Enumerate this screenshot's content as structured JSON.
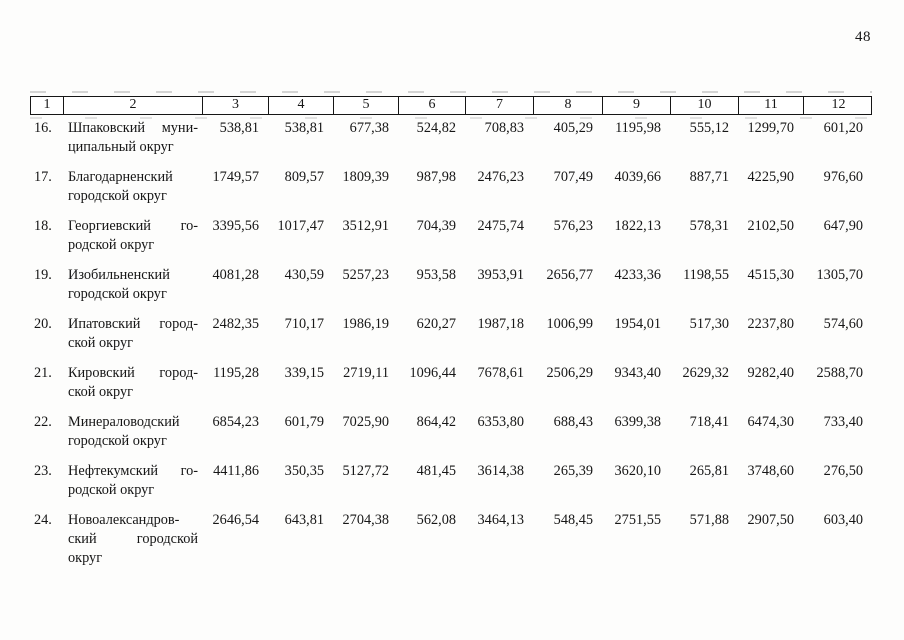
{
  "page": {
    "number": "48"
  },
  "table": {
    "header_cells": [
      "1",
      "2",
      "3",
      "4",
      "5",
      "6",
      "7",
      "8",
      "9",
      "10",
      "11",
      "12"
    ],
    "rows": [
      {
        "num": "16.",
        "name_lines": [
          "Шпаковский муни-",
          "ципальный округ"
        ],
        "values": [
          "538,81",
          "538,81",
          "677,38",
          "524,82",
          "708,83",
          "405,29",
          "1195,98",
          "555,12",
          "1299,70",
          "601,20"
        ]
      },
      {
        "num": "17.",
        "name_lines": [
          "Благодарненский",
          "городской округ"
        ],
        "values": [
          "1749,57",
          "809,57",
          "1809,39",
          "987,98",
          "2476,23",
          "707,49",
          "4039,66",
          "887,71",
          "4225,90",
          "976,60"
        ]
      },
      {
        "num": "18.",
        "name_lines": [
          "Георгиевский го-",
          "родской округ"
        ],
        "values": [
          "3395,56",
          "1017,47",
          "3512,91",
          "704,39",
          "2475,74",
          "576,23",
          "1822,13",
          "578,31",
          "2102,50",
          "647,90"
        ]
      },
      {
        "num": "19.",
        "name_lines": [
          "Изобильненский",
          "городской округ"
        ],
        "values": [
          "4081,28",
          "430,59",
          "5257,23",
          "953,58",
          "3953,91",
          "2656,77",
          "4233,36",
          "1198,55",
          "4515,30",
          "1305,70"
        ]
      },
      {
        "num": "20.",
        "name_lines": [
          "Ипатовский город-",
          "ской округ"
        ],
        "values": [
          "2482,35",
          "710,17",
          "1986,19",
          "620,27",
          "1987,18",
          "1006,99",
          "1954,01",
          "517,30",
          "2237,80",
          "574,60"
        ]
      },
      {
        "num": "21.",
        "name_lines": [
          "Кировский город-",
          "ской округ"
        ],
        "values": [
          "1195,28",
          "339,15",
          "2719,11",
          "1096,44",
          "7678,61",
          "2506,29",
          "9343,40",
          "2629,32",
          "9282,40",
          "2588,70"
        ]
      },
      {
        "num": "22.",
        "name_lines": [
          "Минераловодский",
          "городской округ"
        ],
        "values": [
          "6854,23",
          "601,79",
          "7025,90",
          "864,42",
          "6353,80",
          "688,43",
          "6399,38",
          "718,41",
          "6474,30",
          "733,40"
        ]
      },
      {
        "num": "23.",
        "name_lines": [
          "Нефтекумский го-",
          "родской округ"
        ],
        "values": [
          "4411,86",
          "350,35",
          "5127,72",
          "481,45",
          "3614,38",
          "265,39",
          "3620,10",
          "265,81",
          "3748,60",
          "276,50"
        ]
      },
      {
        "num": "24.",
        "name_lines": [
          "Новоалександров-",
          "ский городской",
          "округ"
        ],
        "values": [
          "2646,54",
          "643,81",
          "2704,38",
          "562,08",
          "3464,13",
          "548,45",
          "2751,55",
          "571,88",
          "2907,50",
          "603,40"
        ]
      }
    ]
  }
}
